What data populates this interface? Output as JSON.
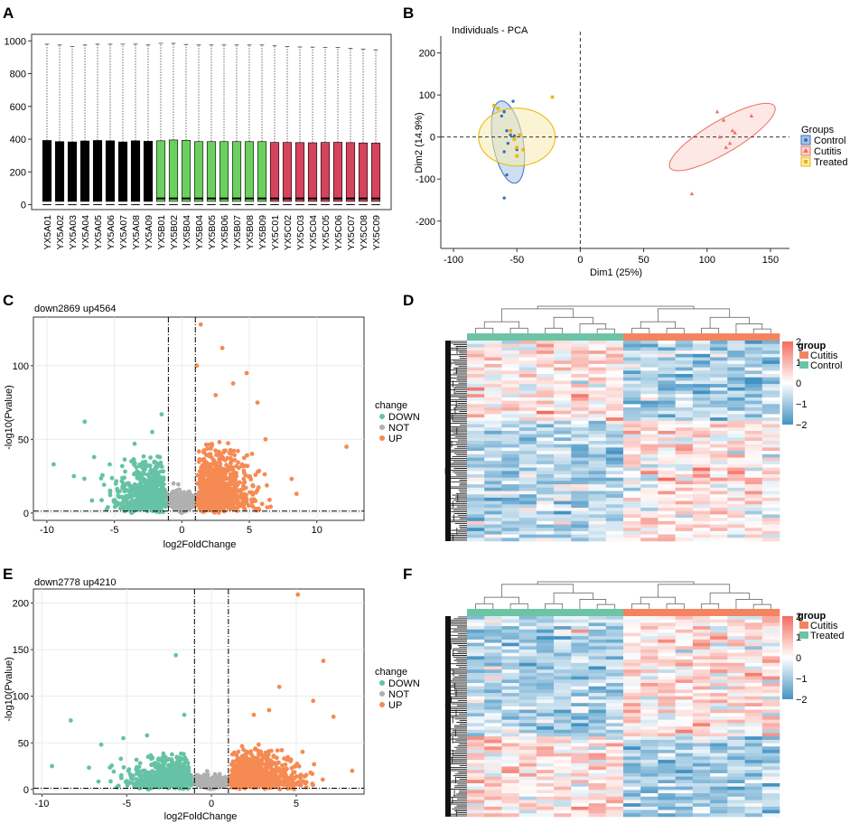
{
  "panels": {
    "A": {
      "letter": "A",
      "chart_data": {
        "type": "boxplot",
        "ylim": [
          -30,
          1040
        ],
        "yticks": [
          0,
          200,
          400,
          600,
          800,
          1000
        ],
        "ytick_labels": [
          "0",
          "200",
          "400",
          "600",
          "800",
          "1000"
        ],
        "categories": [
          "YX5A01",
          "YX5A02",
          "YX5A03",
          "YX5A04",
          "YX5A05",
          "YX5A06",
          "YX5A07",
          "YX5A08",
          "YX5A09",
          "YX5B01",
          "YX5B02",
          "YX5B04",
          "YX5B04",
          "YX5B05",
          "YX5B06",
          "YX5B07",
          "YX5B08",
          "YX5B09",
          "YX5C01",
          "YX5C02",
          "YX5C03",
          "YX5C04",
          "YX5C05",
          "YX5C06",
          "YX5C07",
          "YX5C08",
          "YX5C09"
        ],
        "group_colors": [
          "#000000",
          "#000000",
          "#000000",
          "#000000",
          "#000000",
          "#000000",
          "#000000",
          "#000000",
          "#000000",
          "#6dcf5f",
          "#6dcf5f",
          "#6dcf5f",
          "#6dcf5f",
          "#6dcf5f",
          "#6dcf5f",
          "#6dcf5f",
          "#6dcf5f",
          "#6dcf5f",
          "#d6435c",
          "#d6435c",
          "#d6435c",
          "#d6435c",
          "#d6435c",
          "#d6435c",
          "#d6435c",
          "#d6435c",
          "#d6435c"
        ],
        "q1": [
          20,
          20,
          20,
          20,
          20,
          20,
          20,
          20,
          20,
          20,
          20,
          20,
          20,
          20,
          20,
          20,
          20,
          20,
          20,
          20,
          20,
          20,
          20,
          20,
          20,
          20,
          20
        ],
        "median": [
          38,
          38,
          38,
          38,
          38,
          38,
          38,
          38,
          38,
          38,
          38,
          38,
          38,
          38,
          38,
          38,
          38,
          38,
          38,
          38,
          38,
          38,
          38,
          38,
          38,
          38,
          38
        ],
        "q3": [
          392,
          385,
          383,
          389,
          392,
          390,
          383,
          390,
          387,
          390,
          395,
          393,
          385,
          385,
          385,
          385,
          385,
          385,
          380,
          380,
          379,
          378,
          380,
          381,
          379,
          377,
          376
        ],
        "whisker_low": [
          0,
          0,
          0,
          0,
          0,
          0,
          0,
          0,
          0,
          0,
          0,
          0,
          0,
          0,
          0,
          0,
          0,
          0,
          0,
          0,
          0,
          0,
          0,
          0,
          0,
          0,
          0
        ],
        "whisker_high": [
          980,
          975,
          965,
          975,
          980,
          980,
          980,
          980,
          975,
          985,
          985,
          978,
          975,
          975,
          975,
          975,
          975,
          975,
          970,
          965,
          963,
          962,
          960,
          960,
          955,
          950,
          945
        ]
      }
    },
    "B": {
      "letter": "B",
      "chart_data": {
        "type": "scatter",
        "title": "Individuals - PCA",
        "xlabel": "Dim1 (25%)",
        "ylabel": "Dim2 (14.9%)",
        "xlim": [
          -110,
          165
        ],
        "ylim": [
          -265,
          240
        ],
        "xticks": [
          -100,
          -50,
          0,
          50,
          100,
          150
        ],
        "xtick_labels": [
          "-100",
          "-50",
          "0",
          "50",
          "100",
          "150"
        ],
        "yticks": [
          -200,
          -100,
          0,
          100,
          200
        ],
        "ytick_labels": [
          "-200",
          "-100",
          "0",
          "100",
          "200"
        ],
        "legend_title": "Groups",
        "series": [
          {
            "name": "Control",
            "color": "#3a6fb8",
            "fill": "#a8c4e8",
            "ellipse": {
              "cx": -57,
              "cy": -12,
              "rx": 178,
              "ry": 22,
              "angle_deg": 93
            },
            "x": [
              -60,
              -62,
              -58,
              -55,
              -52,
              -60,
              -57,
              -50,
              -53,
              -58,
              -60
            ],
            "y": [
              60,
              50,
              15,
              5,
              3,
              -35,
              -15,
              -30,
              85,
              -90,
              -145
            ]
          },
          {
            "name": "Cutitis",
            "color": "#e87060",
            "fill": "#fbd6cf",
            "ellipse": {
              "cx": 112,
              "cy": 0,
              "rx": 160,
              "ry": 38,
              "angle_deg": 65
            },
            "x": [
              108,
              113,
              110,
              120,
              118,
              122,
              115,
              135,
              88
            ],
            "y": [
              60,
              40,
              0,
              15,
              -15,
              10,
              -25,
              50,
              -135
            ]
          },
          {
            "name": "Treated",
            "color": "#e8b800",
            "fill": "#f8ebb0",
            "ellipse": {
              "cx": -50,
              "cy": 0,
              "rx": 125,
              "ry": 55,
              "angle_deg": 90
            },
            "x": [
              -68,
              -65,
              -55,
              -52,
              -50,
              -48,
              -45,
              -50,
              -22
            ],
            "y": [
              75,
              68,
              15,
              -5,
              -25,
              5,
              -30,
              -45,
              95
            ]
          }
        ]
      }
    },
    "C": {
      "letter": "C",
      "chart_data": {
        "type": "volcano",
        "title": "down2869 up4564",
        "xlabel": "log2FoldChange",
        "ylabel": "-log10(Pvalue)",
        "xlim": [
          -11,
          13.5
        ],
        "ylim": [
          -5,
          133
        ],
        "xticks": [
          -10,
          -5,
          0,
          5,
          10
        ],
        "xtick_labels": [
          "-10",
          "-5",
          "0",
          "5",
          "10"
        ],
        "yticks": [
          0,
          50,
          100
        ],
        "ytick_labels": [
          "0",
          "50",
          "100"
        ],
        "fc_threshold": 1,
        "p_line": 1.3,
        "legend_title": "change",
        "legend": [
          "DOWN",
          "NOT",
          "UP"
        ],
        "colors": {
          "DOWN": "#66c2a5",
          "NOT": "#b0b0b0",
          "UP": "#f58a53"
        },
        "highlight": {
          "up": [
            [
              1.4,
              128
            ],
            [
              1.1,
              100
            ],
            [
              4.8,
              95
            ],
            [
              3,
              112
            ],
            [
              12.2,
              45
            ],
            [
              8.5,
              13
            ],
            [
              5.6,
              75
            ],
            [
              3.8,
              88
            ],
            [
              6.2,
              50
            ],
            [
              2.5,
              80
            ]
          ],
          "down": [
            [
              -7.2,
              62
            ],
            [
              -9.5,
              33
            ],
            [
              -1.5,
              67
            ],
            [
              -2.2,
              55
            ],
            [
              -8,
              25
            ],
            [
              -6.5,
              38
            ],
            [
              -3.5,
              47
            ]
          ]
        }
      }
    },
    "D": {
      "letter": "D",
      "chart_data": {
        "type": "heatmap",
        "legend_title": "group",
        "group_labels": [
          "Cutitis",
          "Control"
        ],
        "group_colors": [
          "#f4845f",
          "#6cc4a4"
        ],
        "scale_ticks": [
          "2",
          "1",
          "0",
          "−1",
          "−2"
        ],
        "scale_colors": [
          "#f36c5e",
          "#ffffff",
          "#4393c3"
        ],
        "columns": 18,
        "left_group_columns": 9,
        "rows": 60,
        "pattern": "left-group high in top 40% rows, right-group high in bottom 60% rows"
      }
    },
    "E": {
      "letter": "E",
      "chart_data": {
        "type": "volcano",
        "title": "down2778 up4210",
        "xlabel": "log2FoldChange",
        "ylabel": "-log10(Pvalue)",
        "xlim": [
          -10.5,
          9
        ],
        "ylim": [
          -5,
          215
        ],
        "xticks": [
          -10,
          -5,
          0,
          5
        ],
        "xtick_labels": [
          "-10",
          "-5",
          "0",
          "5"
        ],
        "yticks": [
          0,
          50,
          100,
          150,
          200
        ],
        "ytick_labels": [
          "0",
          "50",
          "100",
          "150",
          "200"
        ],
        "fc_threshold": 1,
        "p_line": 1.3,
        "legend_title": "change",
        "legend": [
          "DOWN",
          "NOT",
          "UP"
        ],
        "colors": {
          "DOWN": "#66c2a5",
          "NOT": "#b0b0b0",
          "UP": "#f58a53"
        },
        "highlight": {
          "up": [
            [
              5.1,
              209
            ],
            [
              6.6,
              138
            ],
            [
              7.2,
              78
            ],
            [
              4,
              110
            ],
            [
              3.4,
              85
            ],
            [
              6,
              95
            ],
            [
              8.3,
              20
            ],
            [
              2.5,
              80
            ]
          ],
          "down": [
            [
              -2.1,
              144
            ],
            [
              -8.3,
              74
            ],
            [
              -9.4,
              25
            ],
            [
              -1.6,
              80
            ],
            [
              -6.5,
              48
            ],
            [
              -5.2,
              55
            ],
            [
              -3.8,
              58
            ]
          ]
        }
      }
    },
    "F": {
      "letter": "F",
      "chart_data": {
        "type": "heatmap",
        "legend_title": "group",
        "group_labels": [
          "Cutitis",
          "Treated"
        ],
        "group_colors": [
          "#f4845f",
          "#6cc4a4"
        ],
        "scale_ticks": [
          "2",
          "1",
          "0",
          "−1",
          "−2"
        ],
        "scale_colors": [
          "#f36c5e",
          "#ffffff",
          "#4393c3"
        ],
        "columns": 18,
        "left_group_columns": 9,
        "rows": 60,
        "pattern": "right-group high in top 60% rows, left-group high in bottom 40% rows"
      }
    }
  }
}
